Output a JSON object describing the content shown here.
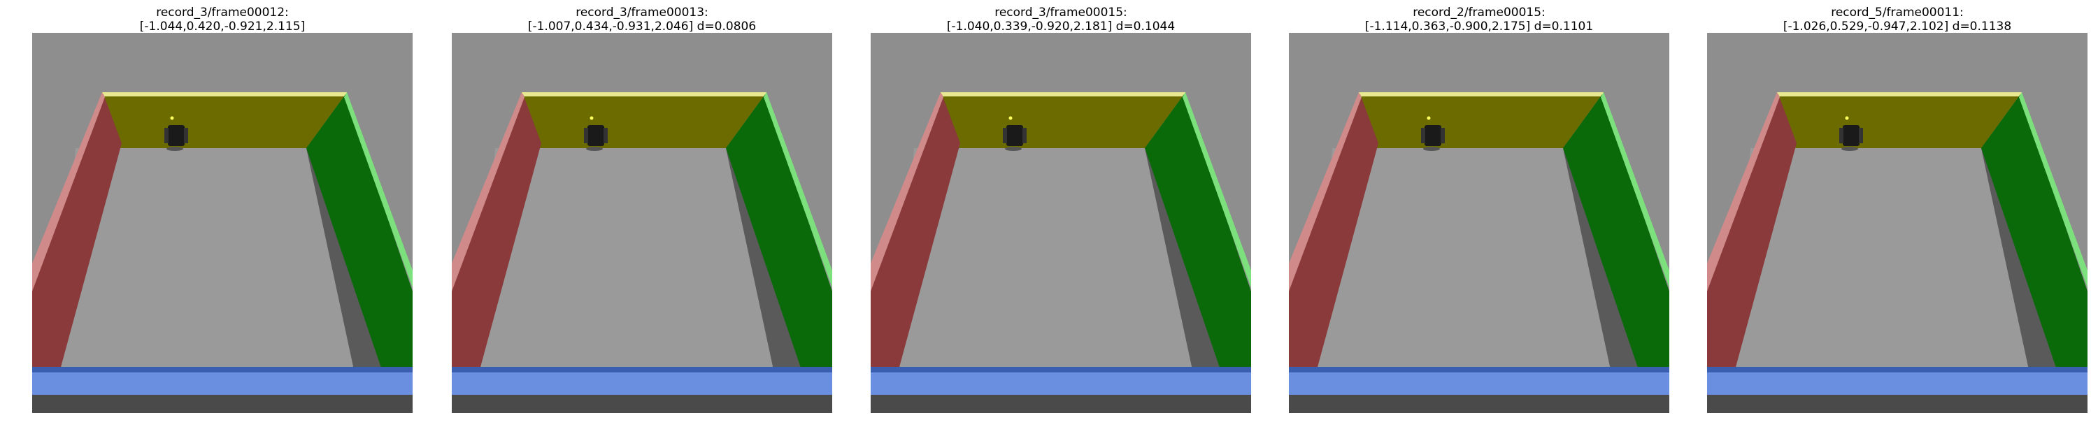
{
  "panels": [
    {
      "title_line1": "record_3/frame00012:",
      "title_line2": "[-1.044,0.420,-0.921,2.115]"
    },
    {
      "title_line1": "record_3/frame00013:",
      "title_line2": "[-1.007,0.434,-0.931,2.046] d=0.0806"
    },
    {
      "title_line1": "record_3/frame00015:",
      "title_line2": "[-1.040,0.339,-0.920,2.181] d=0.1044"
    },
    {
      "title_line1": "record_2/frame00015:",
      "title_line2": "[-1.114,0.363,-0.900,2.175] d=0.1101"
    },
    {
      "title_line1": "record_5/frame00011:",
      "title_line2": "[-1.026,0.529,-0.947,2.102] d=0.1138"
    }
  ],
  "colors": {
    "wall_far": "#6b6b00",
    "wall_far_top": "#e8e890",
    "wall_left": "#8a3a3a",
    "wall_left_top": "#d08a8a",
    "wall_right": "#0a6a0a",
    "wall_right_top": "#7ce07c",
    "wall_near": "#6a8fe0",
    "wall_near_edge": "#3a5fb0",
    "floor": "#9a9a9a",
    "background": "#8e8e8e",
    "shadow": "#5a5a5a",
    "robot": "#1a1a1a"
  }
}
